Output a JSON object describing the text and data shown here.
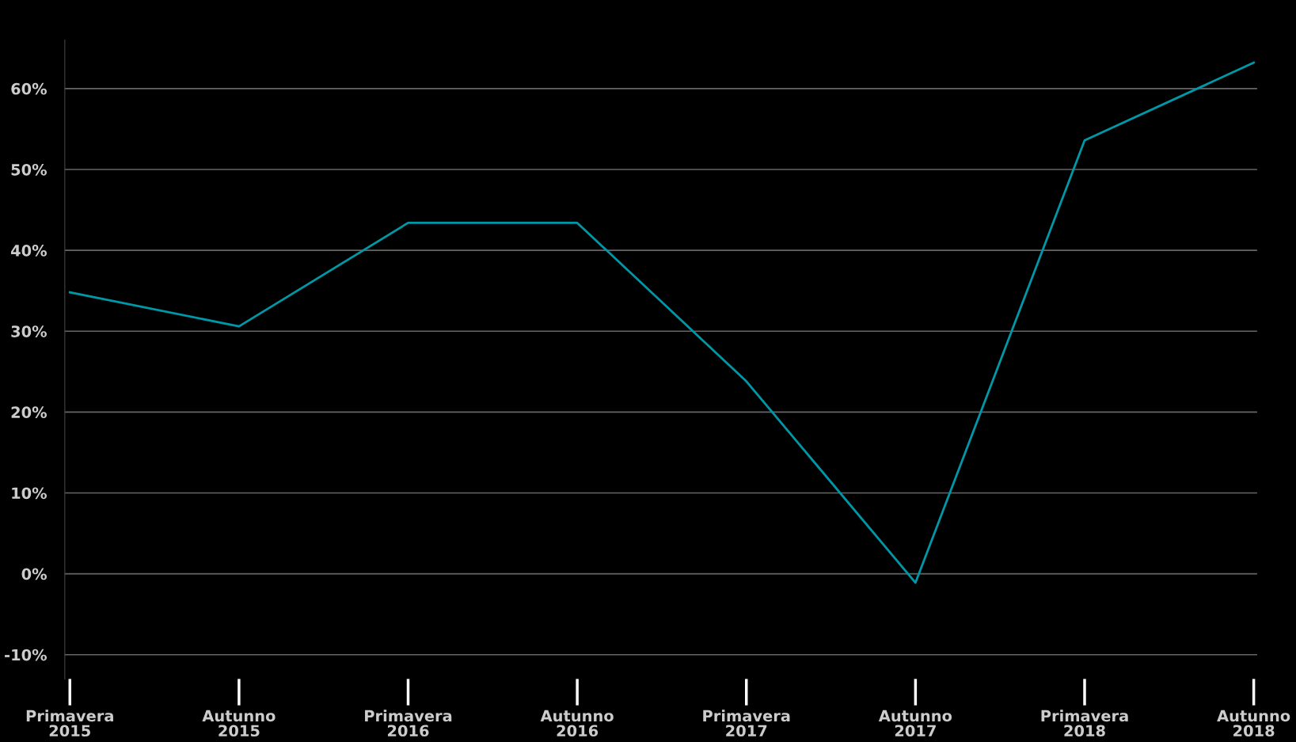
{
  "chart_data": {
    "type": "line",
    "categories": [
      "Primavera\n2015",
      "Autunno\n2015",
      "Primavera\n2016",
      "Autunno\n2016",
      "Primavera\n2017",
      "Autunno\n2017",
      "Primavera\n2018",
      "Autunno\n2018"
    ],
    "series": [
      {
        "color": "#0097a7",
        "values": [
          34.8,
          30.6,
          43.4,
          43.4,
          23.8,
          -1.1,
          53.6,
          63.2
        ]
      }
    ],
    "ylim": [
      -13,
      66
    ],
    "yticks": [
      {
        "value": -10,
        "label": "-10%"
      },
      {
        "value": 0,
        "label": "0%"
      },
      {
        "value": 10,
        "label": "10%"
      },
      {
        "value": 20,
        "label": "20%"
      },
      {
        "value": 30,
        "label": "30%"
      },
      {
        "value": 40,
        "label": "40%"
      },
      {
        "value": 50,
        "label": "50%"
      },
      {
        "value": 60,
        "label": "60%"
      }
    ],
    "grid": "y",
    "line_style": "solid",
    "legend": false
  }
}
